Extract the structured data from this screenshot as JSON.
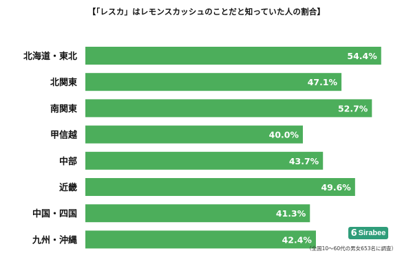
{
  "chart_data": {
    "type": "bar",
    "orientation": "horizontal",
    "title": "【「レスカ」はレモンスカッシュのことだと知っていた人の割合】",
    "categories": [
      "北海道・東北",
      "北関東",
      "南関東",
      "甲信越",
      "中部",
      "近畿",
      "中国・四国",
      "九州・沖縄"
    ],
    "values": [
      54.4,
      47.1,
      52.7,
      40.0,
      43.7,
      49.6,
      41.3,
      42.4
    ],
    "value_labels": [
      "54.4%",
      "47.1%",
      "52.7%",
      "40.0%",
      "43.7%",
      "49.6%",
      "41.3%",
      "42.4%"
    ],
    "xlabel": "",
    "ylabel": "",
    "xlim": [
      0,
      60
    ],
    "grid": false,
    "bar_color": "#4cae5b",
    "label_color": "#ffffff"
  },
  "logo": {
    "mark": "6",
    "text": "Sirabee"
  },
  "note": "（全国10～60代の男女653名に調査）",
  "colors": {
    "logo_bg": "#2f9d7a"
  }
}
